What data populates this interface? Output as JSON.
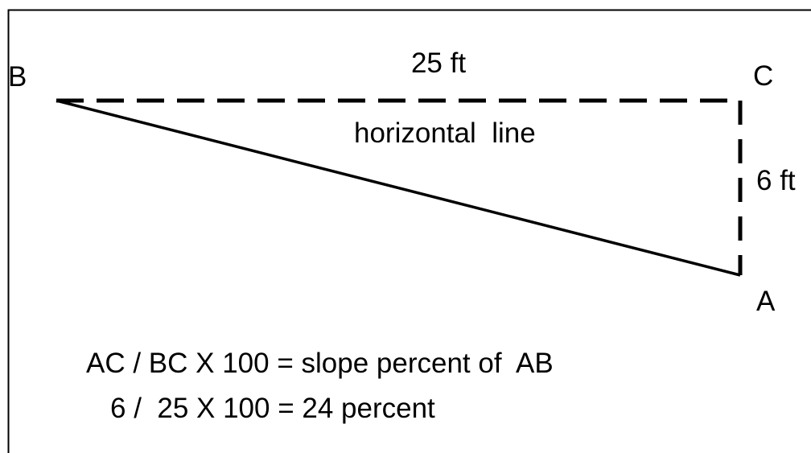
{
  "points": {
    "b": "B",
    "c": "C",
    "a": "A"
  },
  "sides": {
    "bc": "25 ft",
    "bc_note": "horizontal  line",
    "ac": "6 ft"
  },
  "formula": {
    "general": "AC / BC X 100 = slope percent of  AB",
    "worked": "6 /  25 X 100 = 24 percent"
  }
}
